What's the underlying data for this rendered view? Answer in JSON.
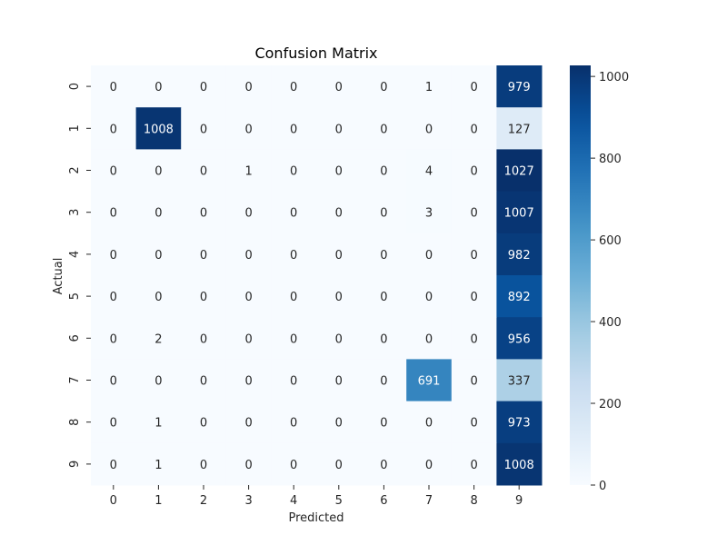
{
  "chart_data": {
    "type": "heatmap",
    "title": "Confusion Matrix",
    "xlabel": "Predicted",
    "ylabel": "Actual",
    "x_categories": [
      "0",
      "1",
      "2",
      "3",
      "4",
      "5",
      "6",
      "7",
      "8",
      "9"
    ],
    "y_categories": [
      "0",
      "1",
      "2",
      "3",
      "4",
      "5",
      "6",
      "7",
      "8",
      "9"
    ],
    "values": [
      [
        0,
        0,
        0,
        0,
        0,
        0,
        0,
        1,
        0,
        979
      ],
      [
        0,
        1008,
        0,
        0,
        0,
        0,
        0,
        0,
        0,
        127
      ],
      [
        0,
        0,
        0,
        1,
        0,
        0,
        0,
        4,
        0,
        1027
      ],
      [
        0,
        0,
        0,
        0,
        0,
        0,
        0,
        3,
        0,
        1007
      ],
      [
        0,
        0,
        0,
        0,
        0,
        0,
        0,
        0,
        0,
        982
      ],
      [
        0,
        0,
        0,
        0,
        0,
        0,
        0,
        0,
        0,
        892
      ],
      [
        0,
        2,
        0,
        0,
        0,
        0,
        0,
        0,
        0,
        956
      ],
      [
        0,
        0,
        0,
        0,
        0,
        0,
        0,
        691,
        0,
        337
      ],
      [
        0,
        1,
        0,
        0,
        0,
        0,
        0,
        0,
        0,
        973
      ],
      [
        0,
        1,
        0,
        0,
        0,
        0,
        0,
        0,
        0,
        1008
      ]
    ],
    "colormap": "Blues",
    "colorbar": {
      "min": 0,
      "max": 1027,
      "ticks": [
        0,
        200,
        400,
        600,
        800,
        1000
      ]
    },
    "colors": {
      "low": "#f7fbff",
      "high": "#08306b",
      "text_dark": "#262626",
      "text_light": "#ffffff"
    }
  }
}
